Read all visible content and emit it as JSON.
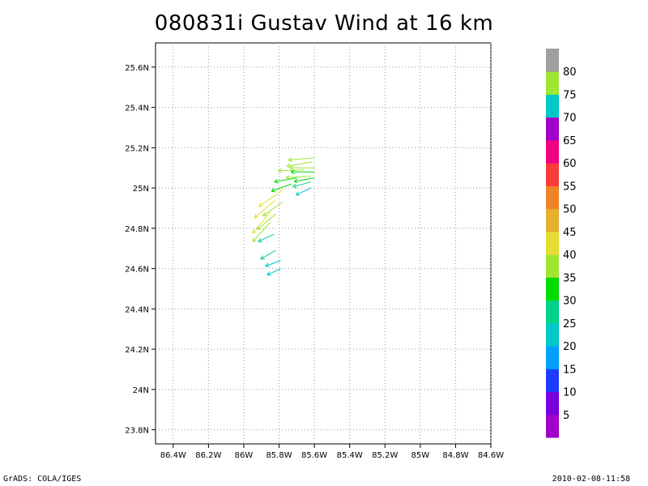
{
  "title": "080831i Gustav Wind at 16 km",
  "footer_left": "GrADS: COLA/IGES",
  "footer_right": "2010-02-08-11:58",
  "chart_data": {
    "type": "vector-map",
    "lon_ticks": [
      "86.4W",
      "86.2W",
      "86W",
      "85.8W",
      "85.6W",
      "85.4W",
      "85.2W",
      "85W",
      "84.8W",
      "84.6W"
    ],
    "lat_ticks": [
      "25.6N",
      "25.4N",
      "25.2N",
      "25N",
      "24.8N",
      "24.6N",
      "24.4N",
      "24.2N",
      "24N",
      "23.8N"
    ],
    "lon_range": [
      -86.5,
      -84.6
    ],
    "lat_range": [
      23.73,
      25.72
    ],
    "grid": true,
    "colorbar": {
      "labels": [
        "5",
        "10",
        "15",
        "20",
        "25",
        "30",
        "35",
        "40",
        "45",
        "50",
        "55",
        "60",
        "65",
        "70",
        "75",
        "80"
      ],
      "colors": [
        "#a000c8",
        "#7800dc",
        "#1e3cff",
        "#00a0ff",
        "#00c8c8",
        "#00d28c",
        "#00dc00",
        "#a0e632",
        "#e6dc32",
        "#e6af2d",
        "#f08228",
        "#fa3c3c",
        "#f00082",
        "#a000c8",
        "#00c8c8",
        "#a0e632",
        "#a0a0a0"
      ]
    },
    "vectors": [
      {
        "lon": -85.6,
        "lat": 25.15,
        "speed": 38,
        "dir": 185
      },
      {
        "lon": -85.61,
        "lat": 25.13,
        "speed": 38,
        "dir": 190
      },
      {
        "lon": -85.6,
        "lat": 25.1,
        "speed": 36,
        "dir": 180
      },
      {
        "lon": -85.66,
        "lat": 25.09,
        "speed": 37,
        "dir": 182
      },
      {
        "lon": -85.6,
        "lat": 25.08,
        "speed": 34,
        "dir": 180
      },
      {
        "lon": -85.62,
        "lat": 25.06,
        "speed": 36,
        "dir": 184
      },
      {
        "lon": -85.6,
        "lat": 25.05,
        "speed": 30,
        "dir": 190
      },
      {
        "lon": -85.62,
        "lat": 25.03,
        "speed": 27,
        "dir": 195
      },
      {
        "lon": -85.62,
        "lat": 25.0,
        "speed": 24,
        "dir": 205
      },
      {
        "lon": -85.7,
        "lat": 25.05,
        "speed": 33,
        "dir": 190
      },
      {
        "lon": -85.73,
        "lat": 25.02,
        "speed": 31,
        "dir": 200
      },
      {
        "lon": -85.78,
        "lat": 24.99,
        "speed": 42,
        "dir": 215
      },
      {
        "lon": -85.82,
        "lat": 24.94,
        "speed": 40,
        "dir": 220
      },
      {
        "lon": -85.85,
        "lat": 24.88,
        "speed": 40,
        "dir": 230
      },
      {
        "lon": -85.78,
        "lat": 24.93,
        "speed": 35,
        "dir": 215
      },
      {
        "lon": -85.82,
        "lat": 24.87,
        "speed": 35,
        "dir": 220
      },
      {
        "lon": -85.85,
        "lat": 24.83,
        "speed": 38,
        "dir": 228
      },
      {
        "lon": -85.83,
        "lat": 24.77,
        "speed": 25,
        "dir": 205
      },
      {
        "lon": -85.82,
        "lat": 24.69,
        "speed": 25,
        "dir": 210
      },
      {
        "lon": -85.79,
        "lat": 24.64,
        "speed": 24,
        "dir": 200
      },
      {
        "lon": -85.79,
        "lat": 24.6,
        "speed": 22,
        "dir": 205
      }
    ]
  }
}
